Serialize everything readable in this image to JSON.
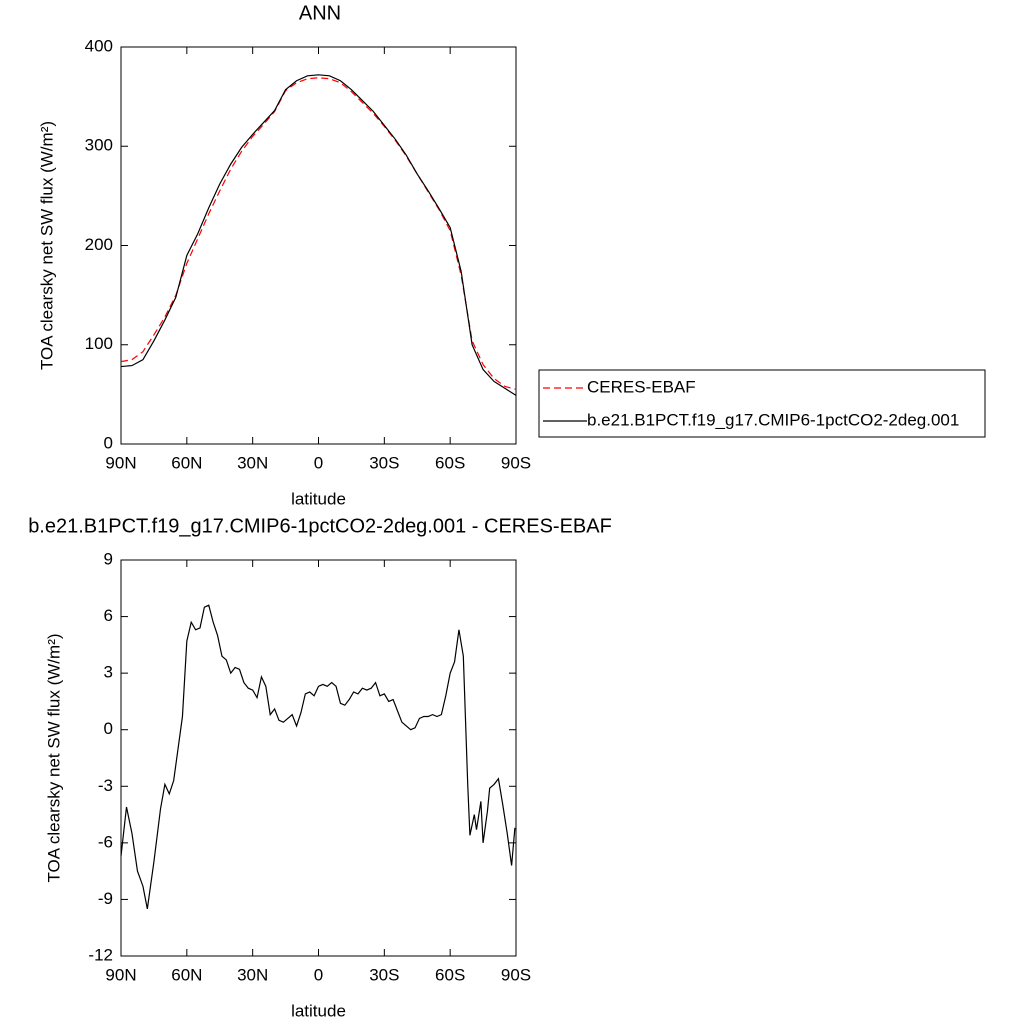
{
  "chart_data": [
    {
      "type": "line",
      "title": "ANN",
      "xlabel": "latitude",
      "ylabel": "TOA clearsky net SW flux (W/m²)",
      "x": [
        90,
        85,
        80,
        75,
        70,
        65,
        60,
        55,
        50,
        45,
        40,
        35,
        30,
        25,
        20,
        15,
        10,
        5,
        0,
        -5,
        -10,
        -15,
        -20,
        -25,
        -30,
        -35,
        -40,
        -45,
        -50,
        -55,
        -60,
        -65,
        -70,
        -75,
        -80,
        -85,
        -90
      ],
      "series": [
        {
          "name": "CERES-EBAF",
          "color": "#ff0000",
          "dashed": true,
          "values": [
            83,
            85,
            93,
            110,
            128,
            150,
            182,
            207,
            232,
            255,
            277,
            295,
            310,
            322,
            335,
            356,
            364,
            368,
            369,
            368,
            364,
            355,
            344,
            333,
            320,
            306,
            290,
            272,
            254,
            236,
            215,
            170,
            104,
            80,
            66,
            58,
            55
          ]
        },
        {
          "name": "b.e21.B1PCT.f19_g17.CMIP6-1pctCO2-2deg.001",
          "color": "#000000",
          "dashed": false,
          "values": [
            78,
            79,
            85,
            104,
            125,
            148,
            190,
            212,
            238,
            262,
            282,
            299,
            312,
            324,
            336,
            357,
            366,
            371,
            372,
            371,
            366,
            357,
            346,
            335,
            321,
            307,
            291,
            272,
            255,
            237,
            218,
            174,
            100,
            75,
            63,
            56,
            49
          ]
        }
      ],
      "xlim": [
        90,
        -90
      ],
      "xticks": [
        {
          "value": 90,
          "label": "90N"
        },
        {
          "value": 60,
          "label": "60N"
        },
        {
          "value": 30,
          "label": "30N"
        },
        0,
        {
          "value": -30,
          "label": "30S"
        },
        {
          "value": -60,
          "label": "60S"
        },
        {
          "value": -90,
          "label": "90S"
        }
      ],
      "ylim": [
        0,
        400
      ],
      "yticks": [
        0,
        100,
        200,
        300,
        400
      ],
      "legend": "right"
    },
    {
      "type": "line",
      "title": "b.e21.B1PCT.f19_g17.CMIP6-1pctCO2-2deg.001 - CERES-EBAF",
      "xlabel": "latitude",
      "ylabel": "TOA clearsky net SW flux (W/m²)",
      "x": [
        90,
        87.5,
        85,
        82.5,
        80,
        78,
        75,
        72,
        70,
        68,
        66,
        64,
        62,
        60,
        58,
        56,
        54,
        52,
        50,
        48,
        46,
        44,
        42,
        40,
        38,
        36,
        34,
        32,
        30,
        28,
        26,
        24,
        22,
        20,
        18,
        16,
        14,
        12,
        10,
        8,
        6,
        4,
        2,
        0,
        -2,
        -4,
        -6,
        -8,
        -10,
        -12,
        -14,
        -16,
        -18,
        -20,
        -22,
        -24,
        -26,
        -28,
        -30,
        -32,
        -34,
        -36,
        -38,
        -40,
        -42,
        -44,
        -46,
        -48,
        -50,
        -52,
        -54,
        -56,
        -58,
        -60,
        -62,
        -64,
        -66,
        -68,
        -69,
        -71,
        -72,
        -74,
        -75,
        -77,
        -78,
        -80,
        -82,
        -84,
        -86,
        -88,
        -89.5
      ],
      "series": [
        {
          "color": "#000000",
          "dashed": false,
          "values": [
            -6.7,
            -4.1,
            -5.5,
            -7.5,
            -8.3,
            -9.5,
            -7,
            -4.2,
            -2.9,
            -3.4,
            -2.7,
            -1,
            0.7,
            4.7,
            5.7,
            5.3,
            5.4,
            6.5,
            6.6,
            5.7,
            5,
            3.9,
            3.7,
            3,
            3.3,
            3.2,
            2.5,
            2.2,
            2.1,
            1.7,
            2.8,
            2.3,
            0.8,
            1.1,
            0.5,
            0.4,
            0.6,
            0.8,
            0.2,
            0.9,
            1.9,
            2,
            1.8,
            2.3,
            2.4,
            2.3,
            2.5,
            2.3,
            1.4,
            1.3,
            1.6,
            2,
            1.9,
            2.2,
            2.1,
            2.2,
            2.5,
            1.8,
            1.9,
            1.5,
            1.6,
            1,
            0.4,
            0.2,
            0,
            0.1,
            0.6,
            0.7,
            0.7,
            0.8,
            0.7,
            0.8,
            1.8,
            3,
            3.6,
            5.3,
            3.9,
            -2.9,
            -5.6,
            -4.5,
            -5.3,
            -3.8,
            -6,
            -4.3,
            -3.1,
            -2.9,
            -2.6,
            -4,
            -5.5,
            -7.2,
            -5.2
          ]
        }
      ],
      "xlim": [
        90,
        -90
      ],
      "xticks": [
        {
          "value": 90,
          "label": "90N"
        },
        {
          "value": 60,
          "label": "60N"
        },
        {
          "value": 30,
          "label": "30N"
        },
        0,
        {
          "value": -30,
          "label": "30S"
        },
        {
          "value": -60,
          "label": "60S"
        },
        {
          "value": -90,
          "label": "90S"
        }
      ],
      "ylim": [
        -12,
        9
      ],
      "yticks": [
        -12,
        -9,
        -6,
        -3,
        0,
        3,
        6,
        9
      ]
    }
  ]
}
